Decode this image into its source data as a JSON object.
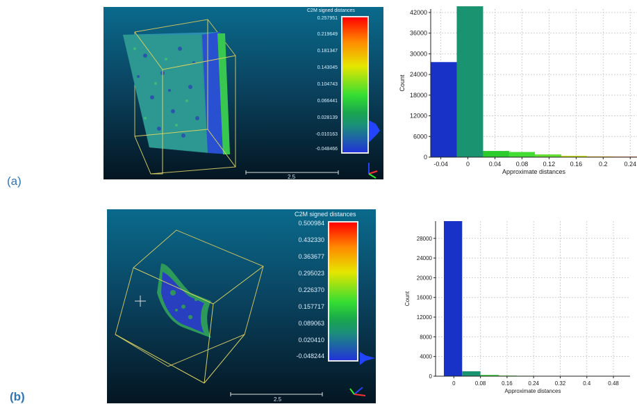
{
  "labels": {
    "a": "(a)",
    "b": "(b)"
  },
  "viewer_a": {
    "colorbar_title": "C2M signed distances",
    "ticks": [
      "0.257951",
      "0.219649",
      "0.181347",
      "0.143045",
      "0.104743",
      "0.066441",
      "0.028139",
      "-0.010163",
      "-0.048466"
    ],
    "scale_label": "2.5"
  },
  "viewer_b": {
    "colorbar_title": "C2M signed distances",
    "ticks": [
      "0.500984",
      "0.432330",
      "0.363677",
      "0.295023",
      "0.226370",
      "0.157717",
      "0.089063",
      "0.020410",
      "-0.048244"
    ],
    "scale_label": "2.5"
  },
  "colors": {
    "blue_bin": "#1832c8",
    "teal_bin": "#1a9470",
    "green_bin": "#33cc33",
    "grid": "#d0d0d0"
  },
  "chart_data": [
    {
      "type": "bar",
      "xlabel": "Approximate distances",
      "ylabel": "Count",
      "xlim": [
        -0.055,
        0.25
      ],
      "ylim": [
        0,
        43000
      ],
      "yticks": [
        0,
        6000,
        12000,
        18000,
        24000,
        30000,
        36000,
        42000
      ],
      "xticks": [
        -0.04,
        0,
        0.04,
        0.08,
        0.12,
        0.16,
        0.2,
        0.24
      ],
      "xticklabels": [
        "-0.04",
        "0",
        "0.04",
        "0.08",
        "0.12",
        "0.16",
        "0.2",
        "0.24"
      ],
      "bins": [
        {
          "x0": -0.055,
          "x1": -0.0165,
          "count": 27600,
          "color": "#1832c8"
        },
        {
          "x0": -0.0165,
          "x1": 0.0225,
          "count": 43800,
          "color": "#1a9470"
        },
        {
          "x0": 0.0225,
          "x1": 0.061,
          "count": 1800,
          "color": "#2bcc2b"
        },
        {
          "x0": 0.061,
          "x1": 0.099,
          "count": 1500,
          "color": "#44dd33"
        },
        {
          "x0": 0.099,
          "x1": 0.138,
          "count": 800,
          "color": "#66e033"
        },
        {
          "x0": 0.138,
          "x1": 0.176,
          "count": 400,
          "color": "#c8e020"
        },
        {
          "x0": 0.176,
          "x1": 0.215,
          "count": 200,
          "color": "#f0b000"
        },
        {
          "x0": 0.215,
          "x1": 0.25,
          "count": 150,
          "color": "#ff5000"
        }
      ]
    },
    {
      "type": "bar",
      "xlabel": "Approximate distances",
      "ylabel": "Count",
      "xlim": [
        -0.055,
        0.53
      ],
      "ylim": [
        0,
        31500
      ],
      "yticks": [
        0,
        4000,
        8000,
        12000,
        16000,
        20000,
        24000,
        28000
      ],
      "xticks": [
        0,
        0.08,
        0.16,
        0.24,
        0.32,
        0.4,
        0.48
      ],
      "xticklabels": [
        "0",
        "0.08",
        "0.16",
        "0.24",
        "0.32",
        "0.4",
        "0.48"
      ],
      "bins": [
        {
          "x0": -0.03,
          "x1": 0.025,
          "count": 31500,
          "color": "#1832c8"
        },
        {
          "x0": 0.025,
          "x1": 0.08,
          "count": 1000,
          "color": "#1a9470"
        },
        {
          "x0": 0.08,
          "x1": 0.135,
          "count": 250,
          "color": "#2bcc2b"
        },
        {
          "x0": 0.135,
          "x1": 0.19,
          "count": 120,
          "color": "#44dd33"
        },
        {
          "x0": 0.19,
          "x1": 0.245,
          "count": 80,
          "color": "#66e033"
        },
        {
          "x0": 0.245,
          "x1": 0.3,
          "count": 60,
          "color": "#a0e020"
        },
        {
          "x0": 0.3,
          "x1": 0.355,
          "count": 50,
          "color": "#c8e020"
        },
        {
          "x0": 0.355,
          "x1": 0.41,
          "count": 40,
          "color": "#f0c000"
        },
        {
          "x0": 0.41,
          "x1": 0.465,
          "count": 30,
          "color": "#f08000"
        },
        {
          "x0": 0.465,
          "x1": 0.52,
          "count": 30,
          "color": "#ff3000"
        }
      ]
    }
  ]
}
